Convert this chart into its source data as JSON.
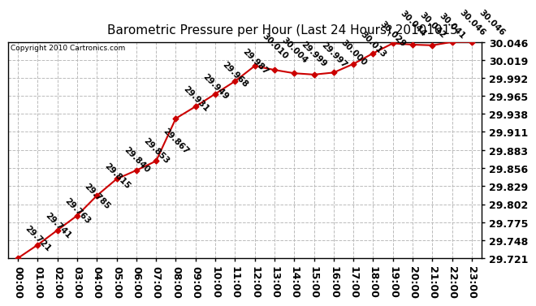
{
  "title": "Barometric Pressure per Hour (Last 24 Hours) 20101015",
  "copyright": "Copyright 2010 Cartronics.com",
  "hours": [
    "00:00",
    "01:00",
    "02:00",
    "03:00",
    "04:00",
    "05:00",
    "06:00",
    "07:00",
    "08:00",
    "09:00",
    "10:00",
    "11:00",
    "12:00",
    "13:00",
    "14:00",
    "15:00",
    "16:00",
    "17:00",
    "18:00",
    "19:00",
    "20:00",
    "21:00",
    "22:00",
    "23:00"
  ],
  "values": [
    29.721,
    29.741,
    29.763,
    29.785,
    29.815,
    29.84,
    29.853,
    29.867,
    29.931,
    29.949,
    29.968,
    29.987,
    30.01,
    30.004,
    29.999,
    29.997,
    30.0,
    30.013,
    30.029,
    30.044,
    30.042,
    30.041,
    30.046,
    30.046
  ],
  "yticks": [
    29.721,
    29.748,
    29.775,
    29.802,
    29.829,
    29.856,
    29.883,
    29.911,
    29.938,
    29.965,
    29.992,
    30.019,
    30.046
  ],
  "ymin": 29.721,
  "ymax": 30.046,
  "line_color": "#cc0000",
  "marker_color": "#cc0000",
  "bg_color": "#ffffff",
  "grid_color": "#bbbbbb",
  "title_fontsize": 11,
  "copyright_fontsize": 6.5,
  "label_fontsize": 7.5,
  "tick_fontsize": 9,
  "label_rotation": -45
}
